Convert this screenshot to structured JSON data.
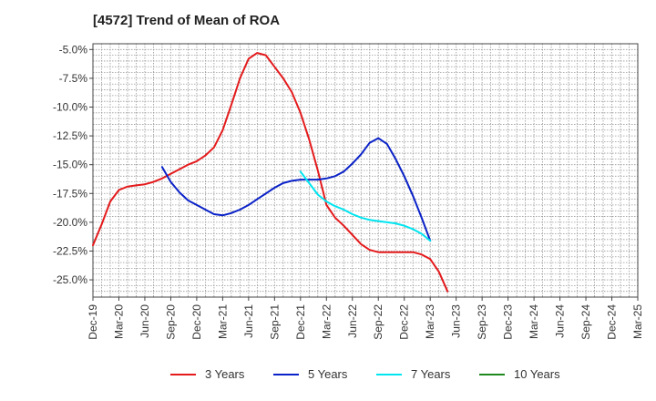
{
  "chart_data": {
    "type": "line",
    "title": "[4572]  Trend of Mean of ROA",
    "xlabel": "",
    "ylabel": "",
    "ylim": [
      -26.5,
      -4.5
    ],
    "y_ticks": [
      -5.0,
      -7.5,
      -10.0,
      -12.5,
      -15.0,
      -17.5,
      -20.0,
      -22.5,
      -25.0
    ],
    "y_tick_labels": [
      "-5.0%",
      "-7.5%",
      "-10.0%",
      "-12.5%",
      "-15.0%",
      "-17.5%",
      "-20.0%",
      "-22.5%",
      "-25.0%"
    ],
    "x_tick_labels": [
      "Dec-19",
      "Mar-20",
      "Jun-20",
      "Sep-20",
      "Dec-20",
      "Mar-21",
      "Jun-21",
      "Sep-21",
      "Dec-21",
      "Mar-22",
      "Jun-22",
      "Sep-22",
      "Dec-22",
      "Mar-23",
      "Jun-23",
      "Sep-23",
      "Dec-23",
      "Mar-24",
      "Jun-24",
      "Sep-24",
      "Dec-24",
      "Mar-25"
    ],
    "grid": true,
    "legend_position": "bottom",
    "series": [
      {
        "name": "3 Years",
        "color": "#e41a1c",
        "start_index": 0,
        "values": [
          -22.0,
          -20.2,
          -18.2,
          -17.2,
          -16.9,
          -16.8,
          -16.7,
          -16.5,
          -16.2,
          -15.8,
          -15.4,
          -15.0,
          -14.7,
          -14.2,
          -13.5,
          -12.0,
          -9.8,
          -7.5,
          -5.8,
          -5.3,
          -5.5,
          -6.5,
          -7.5,
          -8.7,
          -10.5,
          -12.8,
          -15.5,
          -18.5,
          -19.6,
          -20.3,
          -21.1,
          -21.9,
          -22.4,
          -22.6,
          -22.6,
          -22.6,
          -22.6,
          -22.6,
          -22.8,
          -23.2,
          -24.3,
          -26.0
        ]
      },
      {
        "name": "5 Years",
        "color": "#0a22c8",
        "start_index": 8,
        "values": [
          -15.2,
          -16.5,
          -17.4,
          -18.1,
          -18.5,
          -18.9,
          -19.3,
          -19.4,
          -19.2,
          -18.9,
          -18.5,
          -18.0,
          -17.5,
          -17.0,
          -16.6,
          -16.4,
          -16.3,
          -16.3,
          -16.3,
          -16.2,
          -16.0,
          -15.6,
          -14.9,
          -14.1,
          -13.1,
          -12.7,
          -13.2,
          -14.5,
          -16.0,
          -17.7,
          -19.6,
          -21.6
        ]
      },
      {
        "name": "7 Years",
        "color": "#00e5f0",
        "start_index": 24,
        "values": [
          -15.6,
          -16.6,
          -17.6,
          -18.2,
          -18.6,
          -18.9,
          -19.3,
          -19.6,
          -19.8,
          -19.9,
          -20.0,
          -20.1,
          -20.3,
          -20.6,
          -21.0,
          -21.6
        ]
      },
      {
        "name": "10 Years",
        "color": "#1f8a1f",
        "start_index": 0,
        "values": []
      }
    ]
  }
}
